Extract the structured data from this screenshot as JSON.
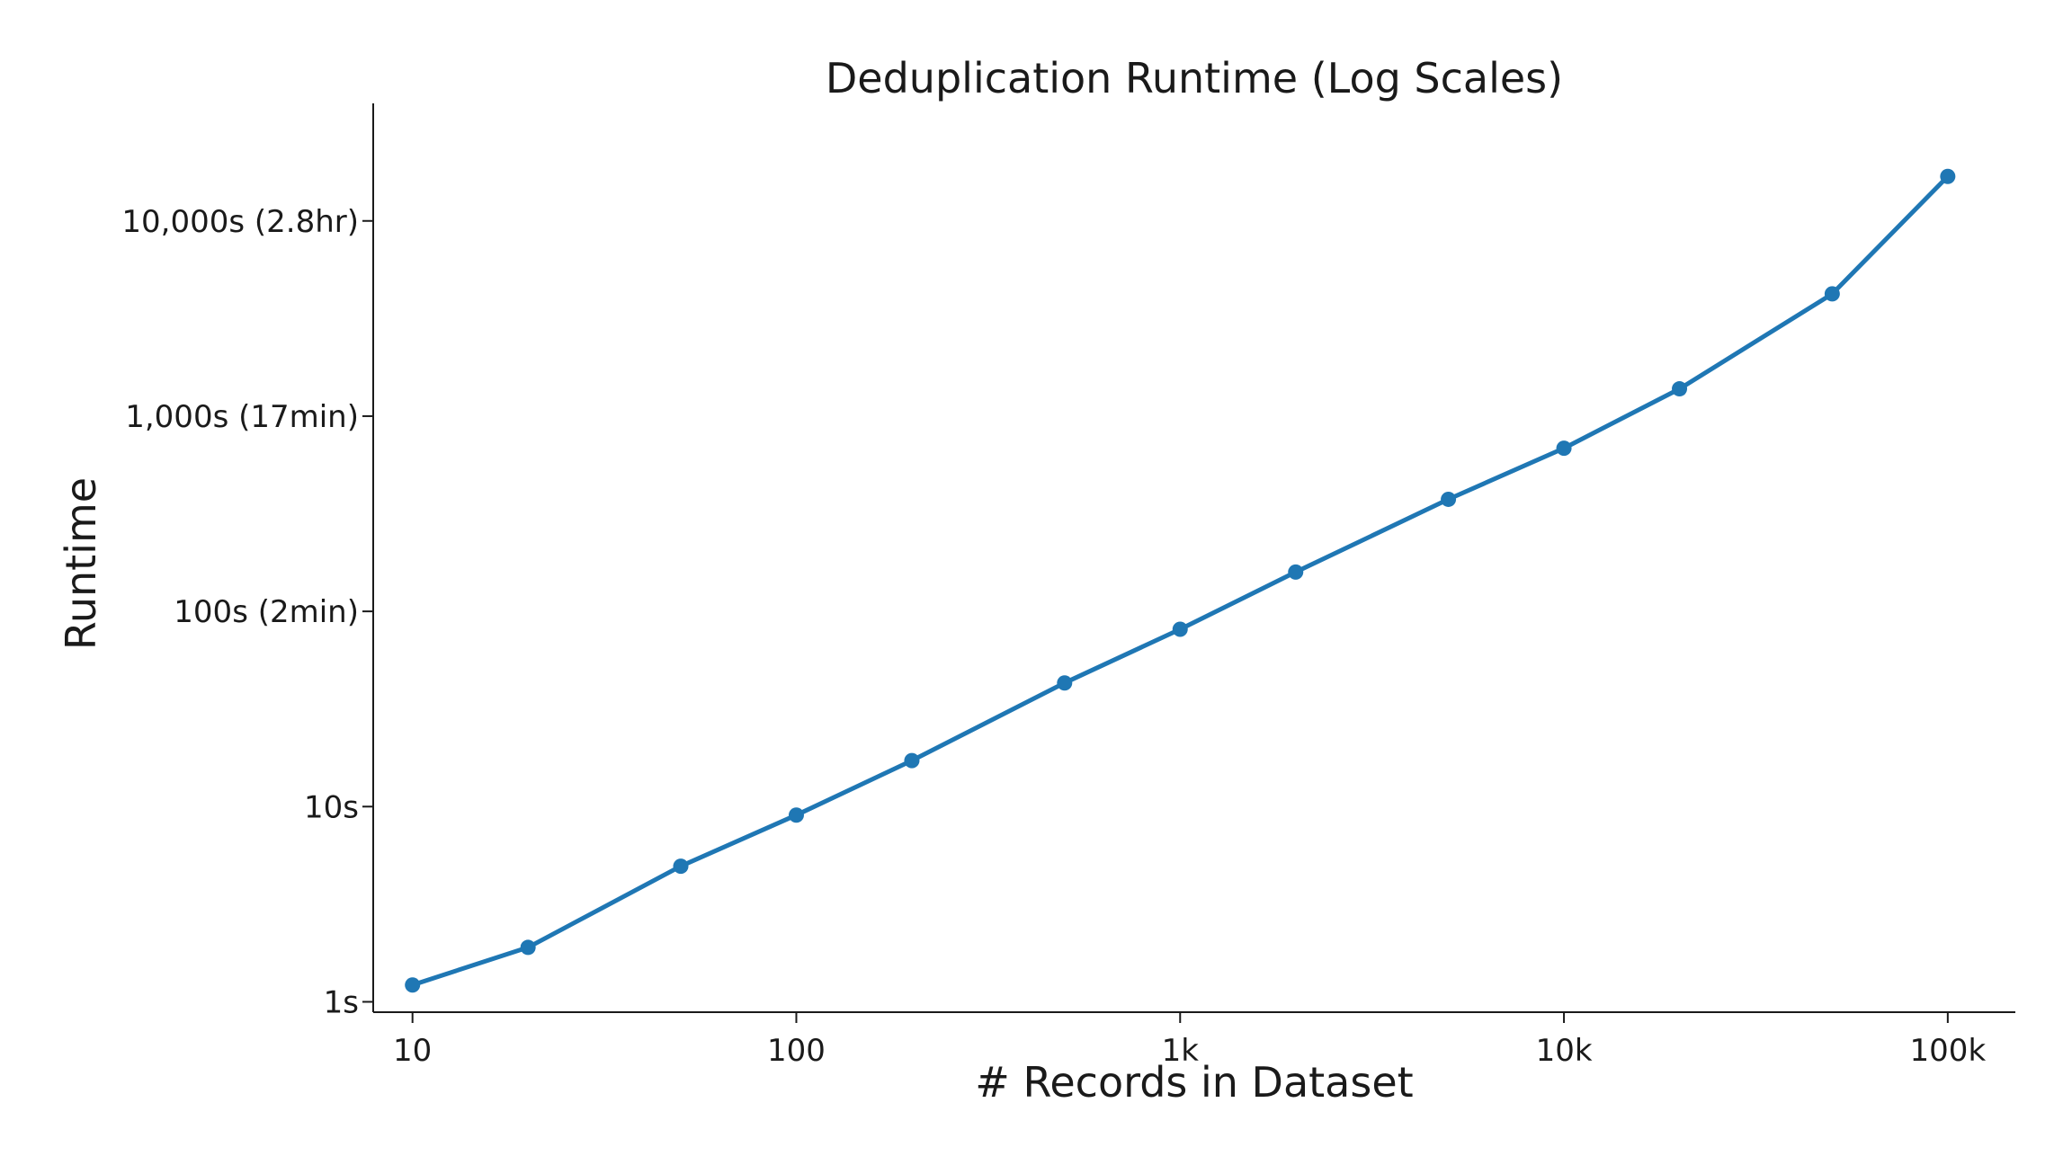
{
  "chart_data": {
    "type": "line",
    "title": "Deduplication Runtime (Log Scales)",
    "xlabel": "# Records in Dataset",
    "ylabel": "Runtime",
    "xscale": "log",
    "yscale": "log",
    "xlim": [
      7.9,
      150000
    ],
    "ylim": [
      0.885,
      40000
    ],
    "grid": false,
    "legend": "none",
    "x_ticks": [
      {
        "value": 10,
        "label": "10"
      },
      {
        "value": 100,
        "label": "100"
      },
      {
        "value": 1000,
        "label": "1k"
      },
      {
        "value": 10000,
        "label": "10k"
      },
      {
        "value": 100000,
        "label": "100k"
      }
    ],
    "y_ticks": [
      {
        "value": 1,
        "label": "1s"
      },
      {
        "value": 10,
        "label": "10s"
      },
      {
        "value": 100,
        "label": "100s (2min)"
      },
      {
        "value": 1000,
        "label": "1,000s (17min)"
      },
      {
        "value": 10000,
        "label": "10,000s (2.8hr)"
      }
    ],
    "series": [
      {
        "color": "#1f77b4",
        "points": [
          {
            "x": 10,
            "y": 1.22
          },
          {
            "x": 20,
            "y": 1.9
          },
          {
            "x": 50,
            "y": 4.95
          },
          {
            "x": 100,
            "y": 9.05
          },
          {
            "x": 200,
            "y": 17.2
          },
          {
            "x": 500,
            "y": 43
          },
          {
            "x": 1000,
            "y": 81
          },
          {
            "x": 2000,
            "y": 159
          },
          {
            "x": 5000,
            "y": 375
          },
          {
            "x": 10000,
            "y": 685
          },
          {
            "x": 20000,
            "y": 1380
          },
          {
            "x": 50000,
            "y": 4230
          },
          {
            "x": 100000,
            "y": 16900
          }
        ]
      }
    ]
  }
}
